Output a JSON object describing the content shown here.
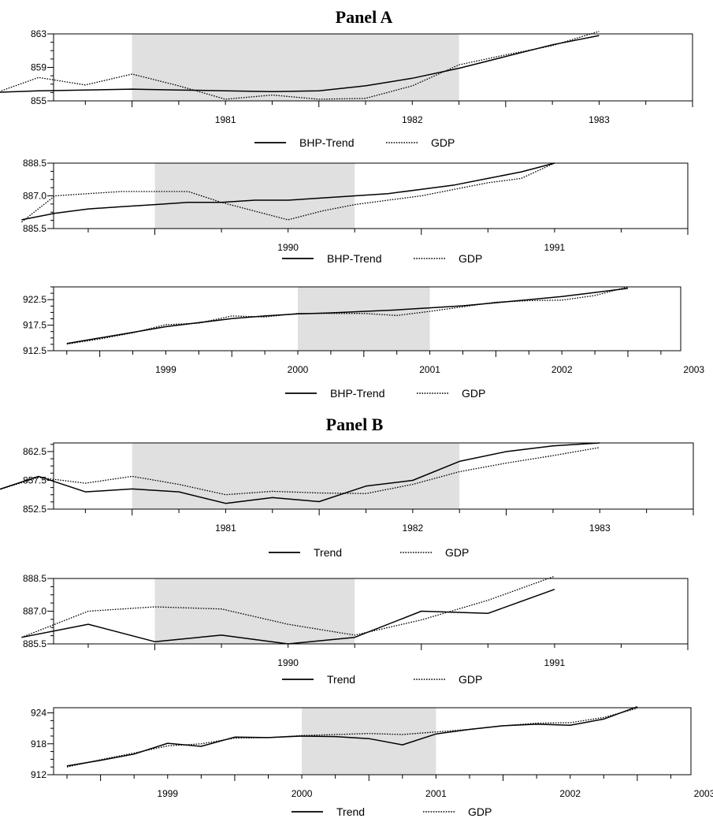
{
  "panels": [
    {
      "title": "Panel A"
    },
    {
      "title": "Panel B"
    }
  ],
  "chart_data": [
    {
      "type": "line",
      "panel": "Panel A",
      "x_start": 1980.58,
      "x_end": 1984.0,
      "xticks": [
        "1981",
        "1982",
        "1983"
      ],
      "ylim": [
        855,
        863
      ],
      "yticks": [
        "855",
        "859",
        "863"
      ],
      "shaded_region": [
        1981.0,
        1982.75
      ],
      "series": [
        {
          "name": "BHP-Trend",
          "style": "solid",
          "x": [
            1980.25,
            1980.5,
            1980.75,
            1981.0,
            1981.25,
            1981.5,
            1981.75,
            1982.0,
            1982.25,
            1982.5,
            1982.75,
            1983.0,
            1983.25,
            1983.5
          ],
          "y": [
            856.0,
            856.2,
            856.3,
            856.4,
            856.3,
            856.2,
            856.1,
            856.2,
            856.8,
            857.7,
            858.9,
            860.3,
            861.7,
            862.8
          ]
        },
        {
          "name": "GDP",
          "style": "dotted",
          "x": [
            1980.25,
            1980.5,
            1980.75,
            1981.0,
            1981.25,
            1981.5,
            1981.75,
            1982.0,
            1982.25,
            1982.5,
            1982.75,
            1983.0,
            1983.25,
            1983.5
          ],
          "y": [
            855.8,
            857.8,
            856.9,
            858.2,
            856.8,
            855.2,
            855.7,
            855.2,
            855.3,
            856.8,
            859.3,
            860.5,
            861.6,
            863.3
          ]
        }
      ]
    },
    {
      "type": "line",
      "panel": "Panel A",
      "x_start": 1989.62,
      "x_end": 1992.0,
      "xticks": [
        "1990",
        "1991"
      ],
      "ylim": [
        885.5,
        888.5
      ],
      "yticks": [
        "885.5",
        "887.0",
        "888.5"
      ],
      "shaded_region": [
        1990.0,
        1990.75
      ],
      "series": [
        {
          "name": "BHP-Trend",
          "style": "solid",
          "x": [
            1989.5,
            1989.625,
            1989.75,
            1989.875,
            1990.0,
            1990.125,
            1990.25,
            1990.375,
            1990.5,
            1990.625,
            1990.75,
            1990.875,
            1991.0,
            1991.125,
            1991.25,
            1991.375,
            1991.5
          ],
          "y": [
            885.9,
            886.2,
            886.4,
            886.5,
            886.6,
            886.7,
            886.7,
            886.8,
            886.8,
            886.9,
            887.0,
            887.1,
            887.3,
            887.5,
            887.8,
            888.1,
            888.5
          ]
        },
        {
          "name": "GDP",
          "style": "dotted",
          "x": [
            1989.5,
            1989.625,
            1989.75,
            1989.875,
            1990.0,
            1990.125,
            1990.25,
            1990.375,
            1990.5,
            1990.625,
            1990.75,
            1990.875,
            1991.0,
            1991.125,
            1991.25,
            1991.375,
            1991.5
          ],
          "y": [
            885.8,
            887.0,
            887.1,
            887.2,
            887.2,
            887.2,
            886.7,
            886.3,
            885.9,
            886.3,
            886.6,
            886.8,
            887.0,
            887.3,
            887.6,
            887.8,
            888.5
          ]
        }
      ]
    },
    {
      "type": "line",
      "panel": "Panel A",
      "x_start": 1998.65,
      "x_end": 2003.4,
      "xticks": [
        "1999",
        "2000",
        "2001",
        "2002",
        "2003"
      ],
      "ylim": [
        912.5,
        925
      ],
      "yticks": [
        "912.5",
        "917.5",
        "922.5"
      ],
      "shaded_region": [
        2000.5,
        2001.5
      ],
      "series": [
        {
          "name": "BHP-Trend",
          "style": "solid",
          "x": [
            1998.75,
            1999.0,
            1999.25,
            1999.5,
            1999.75,
            2000.0,
            2000.25,
            2000.5,
            2000.75,
            2001.0,
            2001.25,
            2001.5,
            2001.75,
            2002.0,
            2002.25,
            2002.5,
            2002.75,
            2003.0
          ],
          "y": [
            913.9,
            915.0,
            916.1,
            917.2,
            918.0,
            918.8,
            919.3,
            919.7,
            919.9,
            920.2,
            920.5,
            920.9,
            921.3,
            921.9,
            922.5,
            923.1,
            923.9,
            924.7
          ]
        },
        {
          "name": "GDP",
          "style": "dotted",
          "x": [
            1998.75,
            1999.0,
            1999.25,
            1999.5,
            1999.75,
            2000.0,
            2000.25,
            2000.5,
            2000.75,
            2001.0,
            2001.25,
            2001.5,
            2001.75,
            2002.0,
            2002.25,
            2002.5,
            2002.75,
            2003.0
          ],
          "y": [
            913.8,
            914.8,
            916.0,
            917.6,
            917.9,
            919.3,
            919.1,
            919.8,
            919.8,
            919.8,
            919.4,
            920.2,
            921.1,
            922.0,
            922.3,
            922.4,
            923.3,
            925.0
          ]
        }
      ]
    },
    {
      "type": "line",
      "panel": "Panel B",
      "x_start": 1980.58,
      "x_end": 1984.0,
      "xticks": [
        "1981",
        "1982",
        "1983"
      ],
      "ylim": [
        852.5,
        864
      ],
      "yticks": [
        "852.5",
        "857.5",
        "862.5"
      ],
      "shaded_region": [
        1981.0,
        1982.75
      ],
      "series": [
        {
          "name": "Trend",
          "style": "solid",
          "x": [
            1980.25,
            1980.5,
            1980.75,
            1981.0,
            1981.25,
            1981.5,
            1981.75,
            1982.0,
            1982.25,
            1982.5,
            1982.75,
            1983.0,
            1983.25,
            1983.5
          ],
          "y": [
            855.5,
            858.2,
            855.5,
            856.0,
            855.5,
            853.5,
            854.5,
            853.8,
            856.5,
            857.5,
            860.8,
            862.5,
            863.5,
            864.0
          ]
        },
        {
          "name": "GDP",
          "style": "dotted",
          "x": [
            1980.25,
            1980.5,
            1980.75,
            1981.0,
            1981.25,
            1981.5,
            1981.75,
            1982.0,
            1982.25,
            1982.5,
            1982.75,
            1983.0,
            1983.25,
            1983.5
          ],
          "y": [
            855.5,
            858.0,
            857.0,
            858.2,
            856.8,
            855.0,
            855.6,
            855.3,
            855.2,
            856.8,
            859.0,
            860.5,
            861.8,
            863.2
          ]
        }
      ]
    },
    {
      "type": "line",
      "panel": "Panel B",
      "x_start": 1989.62,
      "x_end": 1992.0,
      "xticks": [
        "1990",
        "1991"
      ],
      "ylim": [
        885.5,
        888.5
      ],
      "yticks": [
        "885.5",
        "887.0",
        "888.5"
      ],
      "shaded_region": [
        1990.0,
        1990.75
      ],
      "series": [
        {
          "name": "Trend",
          "style": "solid",
          "x": [
            1989.5,
            1989.75,
            1990.0,
            1990.25,
            1990.5,
            1990.75,
            1991.0,
            1991.25,
            1991.5
          ],
          "y": [
            885.8,
            886.4,
            885.6,
            885.9,
            885.5,
            885.8,
            887.0,
            886.9,
            888.0
          ]
        },
        {
          "name": "GDP",
          "style": "dotted",
          "x": [
            1989.5,
            1989.75,
            1990.0,
            1990.25,
            1990.5,
            1990.75,
            1991.0,
            1991.25,
            1991.5
          ],
          "y": [
            885.8,
            887.0,
            887.2,
            887.1,
            886.4,
            885.9,
            886.6,
            887.5,
            888.6
          ]
        }
      ]
    },
    {
      "type": "line",
      "panel": "Panel B",
      "x_start": 1998.65,
      "x_end": 2003.4,
      "xticks": [
        "1999",
        "2000",
        "2001",
        "2002",
        "2003"
      ],
      "ylim": [
        912,
        925
      ],
      "yticks": [
        "912",
        "918",
        "924"
      ],
      "shaded_region": [
        2000.5,
        2001.5
      ],
      "series": [
        {
          "name": "Trend",
          "style": "solid",
          "x": [
            1998.75,
            1999.0,
            1999.25,
            1999.5,
            1999.75,
            2000.0,
            2000.25,
            2000.5,
            2000.75,
            2001.0,
            2001.25,
            2001.5,
            2001.75,
            2002.0,
            2002.25,
            2002.5,
            2002.75,
            2003.0
          ],
          "y": [
            913.7,
            914.8,
            916.0,
            918.1,
            917.5,
            919.3,
            919.2,
            919.5,
            919.4,
            919.0,
            917.8,
            919.9,
            920.8,
            921.5,
            921.8,
            921.6,
            922.8,
            925.2
          ]
        },
        {
          "name": "GDP",
          "style": "dotted",
          "x": [
            1998.75,
            1999.0,
            1999.25,
            1999.5,
            1999.75,
            2000.0,
            2000.25,
            2000.5,
            2000.75,
            2001.0,
            2001.25,
            2001.5,
            2001.75,
            2002.0,
            2002.25,
            2002.5,
            2002.75,
            2003.0
          ],
          "y": [
            913.5,
            914.9,
            916.2,
            917.6,
            918.0,
            919.1,
            919.2,
            919.6,
            919.8,
            920.0,
            919.8,
            920.3,
            920.8,
            921.5,
            922.0,
            922.1,
            923.1,
            924.9
          ]
        }
      ]
    }
  ]
}
